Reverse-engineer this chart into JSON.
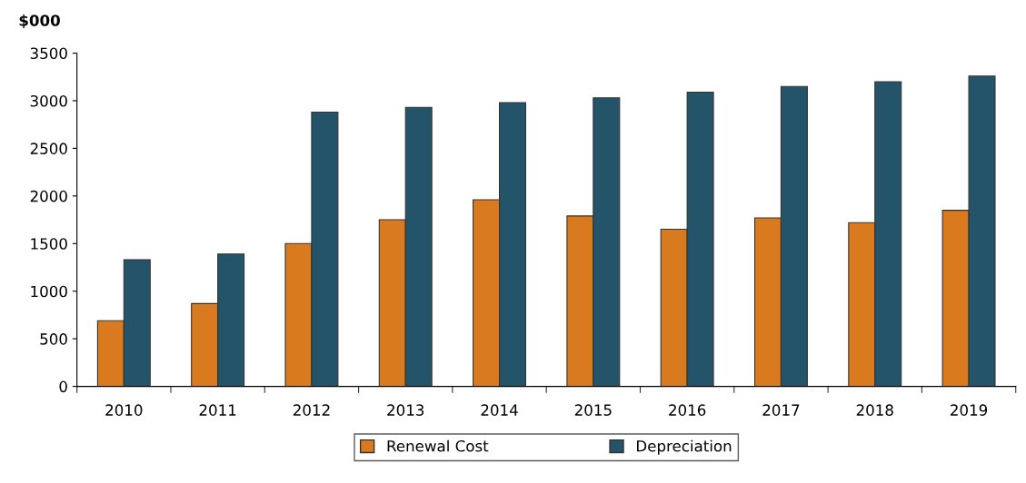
{
  "chart_data": {
    "type": "bar",
    "ylabel": "$000",
    "categories": [
      "2010",
      "2011",
      "2012",
      "2013",
      "2014",
      "2015",
      "2016",
      "2017",
      "2018",
      "2019"
    ],
    "series": [
      {
        "name": "Renewal Cost",
        "color": "#d97a1e",
        "values": [
          690,
          870,
          1500,
          1750,
          1960,
          1790,
          1650,
          1770,
          1720,
          1850
        ]
      },
      {
        "name": "Depreciation",
        "color": "#23546a",
        "values": [
          1330,
          1390,
          2880,
          2930,
          2980,
          3030,
          3090,
          3150,
          3200,
          3260
        ]
      }
    ],
    "ylim": [
      0,
      3500
    ],
    "yticks": [
      0,
      500,
      1000,
      1500,
      2000,
      2500,
      3000,
      3500
    ],
    "grid": false,
    "legend": "bottom"
  }
}
